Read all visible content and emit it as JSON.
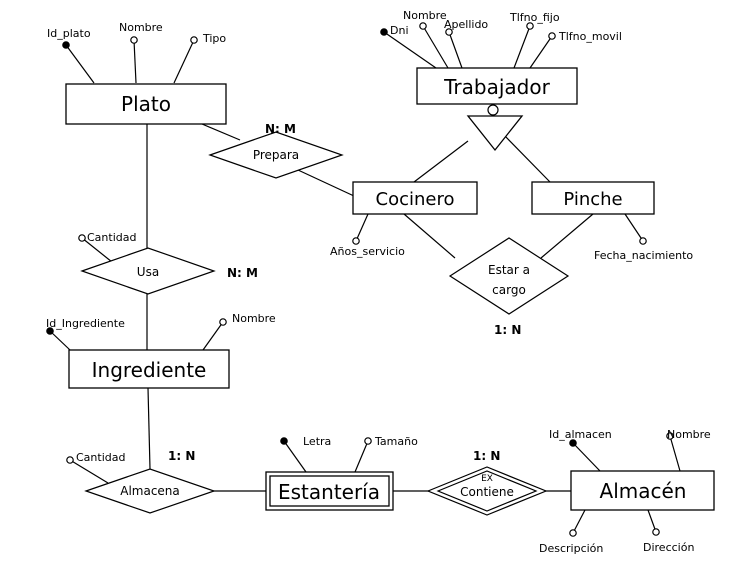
{
  "entities": {
    "plato": "Plato",
    "trabajador": "Trabajador",
    "cocinero": "Cocinero",
    "pinche": "Pinche",
    "ingrediente": "Ingrediente",
    "estanteria": "Estantería",
    "almacen": "Almacén"
  },
  "relationships": {
    "prepara": "Prepara",
    "usa": "Usa",
    "estar_a_cargo_line1": "Estar a",
    "estar_a_cargo_line2": "cargo",
    "almacena": "Almacena",
    "contiene": "Contiene",
    "contiene_tag": "EX"
  },
  "attributes": {
    "plato": {
      "id": "Id_plato",
      "nombre": "Nombre",
      "tipo": "Tipo"
    },
    "trabajador": {
      "dni": "Dni",
      "nombre": "Nombre",
      "apellido": "Apellido",
      "tlfno_fijo": "Tlfno_fijo",
      "tlfno_movil": "Tlfno_movil"
    },
    "cocinero": {
      "anos_servicio": "Años_servicio"
    },
    "pinche": {
      "fecha_nacimiento": "Fecha_nacimiento"
    },
    "usa": {
      "cantidad": "Cantidad"
    },
    "ingrediente": {
      "id": "Id_Ingrediente",
      "nombre": "Nombre"
    },
    "almacena": {
      "cantidad": "Cantidad"
    },
    "estanteria": {
      "letra": "Letra",
      "tamano": "Tamaño"
    },
    "almacen": {
      "id": "Id_almacen",
      "nombre": "Nombre",
      "descripcion": "Descripción",
      "direccion": "Dirección"
    }
  },
  "cardinalities": {
    "prepara": "N: M",
    "usa": "N: M",
    "estar_a_cargo": "1: N",
    "almacena": "1: N",
    "contiene": "1: N"
  }
}
